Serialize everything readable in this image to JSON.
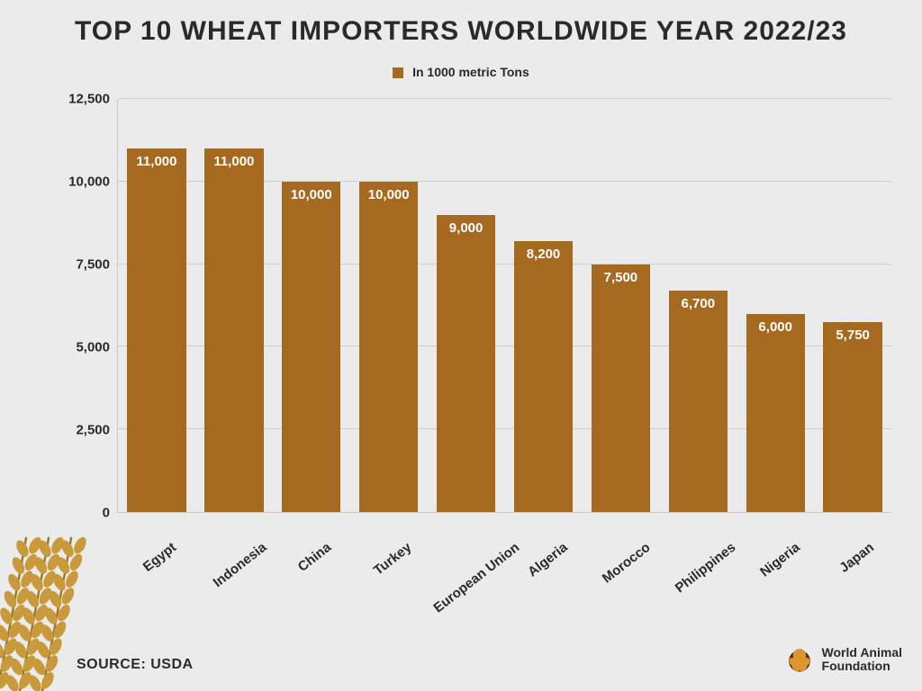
{
  "title": "TOP 10 WHEAT IMPORTERS WORLDWIDE YEAR 2022/23",
  "title_fontsize": 30,
  "legend_label": "In 1000 metric Tons",
  "legend_fontsize": 14,
  "source_label": "SOURCE: USDA",
  "source_fontsize": 16,
  "brand": {
    "line1": "World Animal",
    "line2": "Foundation",
    "fontsize": 14
  },
  "chart": {
    "type": "bar",
    "categories": [
      "Egypt",
      "Indonesia",
      "China",
      "Turkey",
      "European Union",
      "Algeria",
      "Morocco",
      "Philippines",
      "Nigeria",
      "Japan"
    ],
    "values": [
      11000,
      11000,
      10000,
      10000,
      9000,
      8200,
      7500,
      6700,
      6000,
      5750
    ],
    "value_labels": [
      "11,000",
      "11,000",
      "10,000",
      "10,000",
      "9,000",
      "8,200",
      "7,500",
      "6,700",
      "6,000",
      "5,750"
    ],
    "bar_color": "#a56a1f",
    "bar_value_fontsize": 15,
    "x_label_fontsize": 15,
    "x_label_rotation_deg": -38,
    "ylim": [
      0,
      12500
    ],
    "ytick_step": 2500,
    "ytick_labels": [
      "0",
      "2,500",
      "5,000",
      "7,500",
      "10,000",
      "12,500"
    ],
    "ytick_fontsize": 15,
    "grid_color": "#cfcfcf",
    "background_color": "#ebebeb",
    "bar_width_ratio": 0.76
  },
  "decor": {
    "wheat_color": "#c99a3b",
    "wheat_stem_color": "#9c7a2a",
    "brand_accent": "#e0942f",
    "brand_circle": "#4a2f18"
  }
}
